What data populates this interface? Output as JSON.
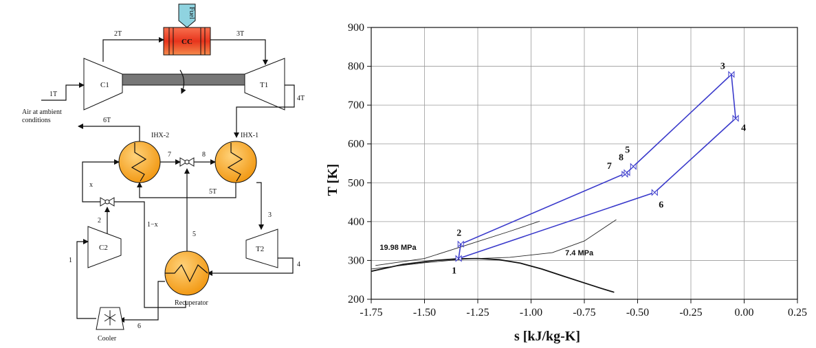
{
  "schematic": {
    "fuel_label": "Fuel",
    "cc_label": "CC",
    "c1_label": "C1",
    "t1_label": "T1",
    "c2_label": "C2",
    "t2_label": "T2",
    "ihx2_label": "IHX-2",
    "ihx1_label": "IHX-1",
    "recuperator_label": "Recuperator",
    "cooler_label": "Cooler",
    "air_label_line1": "Air at ambient",
    "air_label_line2": "conditions",
    "stream_labels": {
      "s1T": "1T",
      "s2T": "2T",
      "s3T": "3T",
      "s4T": "4T",
      "s5T": "5T",
      "s6T": "6T",
      "s7": "7",
      "s8": "8",
      "x": "x",
      "one_minus_x": "1−x",
      "s2": "2",
      "s1": "1",
      "s5": "5",
      "s3": "3",
      "s4": "4",
      "s6": "6"
    },
    "colors": {
      "cc_fill": "#e8402a",
      "fuel_fill": "#8fd3e0",
      "hx_fill": "#f6a623",
      "shaft_fill": "#777777"
    }
  },
  "chart_data": {
    "type": "line",
    "xlabel": "s [kJ/kg-K]",
    "ylabel": "T [K]",
    "xlim": [
      -1.75,
      0.25
    ],
    "ylim": [
      200,
      900
    ],
    "xticks": [
      "-1.75",
      "-1.50",
      "-1.25",
      "-1.00",
      "-0.75",
      "-0.50",
      "-0.25",
      "0.00",
      "0.25"
    ],
    "yticks": [
      "200",
      "300",
      "400",
      "500",
      "600",
      "700",
      "800",
      "900"
    ],
    "grid": true,
    "cycle_color": "#3a3acb",
    "states": [
      {
        "label": "1",
        "s": -1.34,
        "T": 305
      },
      {
        "label": "2",
        "s": -1.33,
        "T": 342
      },
      {
        "label": "3",
        "s": -0.06,
        "T": 779
      },
      {
        "label": "4",
        "s": -0.04,
        "T": 666
      },
      {
        "label": "5",
        "s": -0.52,
        "T": 542
      },
      {
        "label": "6",
        "s": -0.42,
        "T": 475
      },
      {
        "label": "7",
        "s": -0.56,
        "T": 522
      },
      {
        "label": "8",
        "s": -0.55,
        "T": 526
      }
    ],
    "cycle_path": [
      [
        -1.34,
        305
      ],
      [
        -1.33,
        342
      ],
      [
        -0.55,
        526
      ],
      [
        -0.52,
        542
      ],
      [
        -0.06,
        779
      ],
      [
        -0.04,
        666
      ],
      [
        -0.42,
        475
      ],
      [
        -1.34,
        305
      ]
    ],
    "saturation_dome": [
      [
        -1.75,
        272
      ],
      [
        -1.6,
        290
      ],
      [
        -1.45,
        300
      ],
      [
        -1.35,
        304
      ],
      [
        -1.25,
        305
      ],
      [
        -1.15,
        302
      ],
      [
        -1.05,
        293
      ],
      [
        -0.95,
        278
      ],
      [
        -0.85,
        260
      ],
      [
        -0.75,
        242
      ],
      [
        -0.67,
        228
      ],
      [
        -0.61,
        218
      ]
    ],
    "isobars": [
      {
        "name": "19.98 MPa",
        "points": [
          [
            -1.73,
            287
          ],
          [
            -1.5,
            305
          ],
          [
            -1.3,
            340
          ],
          [
            -1.1,
            375
          ],
          [
            -0.96,
            401
          ]
        ]
      },
      {
        "name": "7.4 MPa",
        "points": [
          [
            -1.75,
            278
          ],
          [
            -1.5,
            294
          ],
          [
            -1.3,
            304
          ],
          [
            -1.1,
            308
          ],
          [
            -0.9,
            320
          ],
          [
            -0.75,
            350
          ],
          [
            -0.6,
            405
          ]
        ]
      }
    ]
  }
}
